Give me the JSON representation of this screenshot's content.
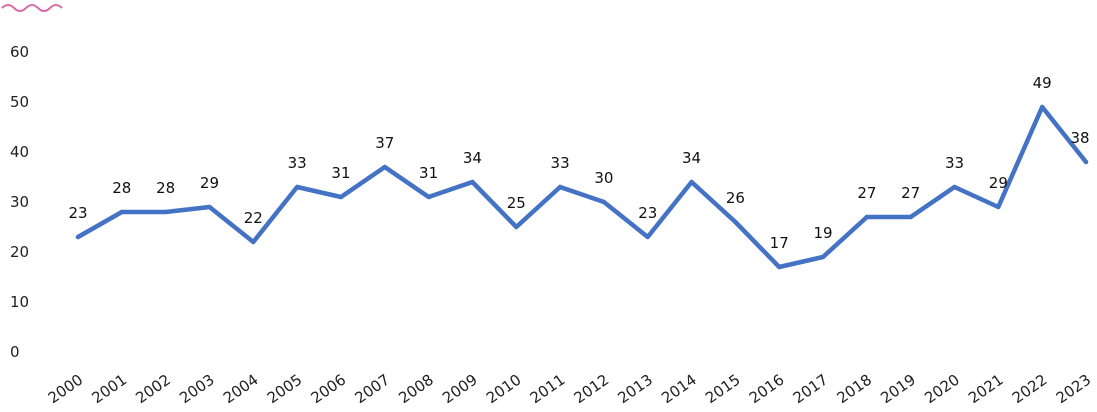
{
  "chart_data": {
    "type": "line",
    "x": [
      "2000",
      "2001",
      "2002",
      "2003",
      "2004",
      "2005",
      "2006",
      "2007",
      "2008",
      "2009",
      "2010",
      "2011",
      "2012",
      "2013",
      "2014",
      "2015",
      "2016",
      "2017",
      "2018",
      "2019",
      "2020",
      "2021",
      "2022",
      "2023"
    ],
    "series": [
      {
        "values": [
          23,
          28,
          28,
          29,
          22,
          33,
          31,
          37,
          31,
          34,
          25,
          33,
          30,
          23,
          34,
          26,
          17,
          19,
          27,
          27,
          33,
          29,
          49,
          38
        ]
      }
    ],
    "yticks": [
      0,
      10,
      20,
      30,
      40,
      50,
      60
    ],
    "ylim": [
      0,
      60
    ],
    "grid": false,
    "legend": "none",
    "colors": {
      "line": "#4472c4",
      "text": "#222222"
    }
  },
  "header_decoration": {
    "icon": "wave-icon",
    "color": "#d86aa8"
  }
}
